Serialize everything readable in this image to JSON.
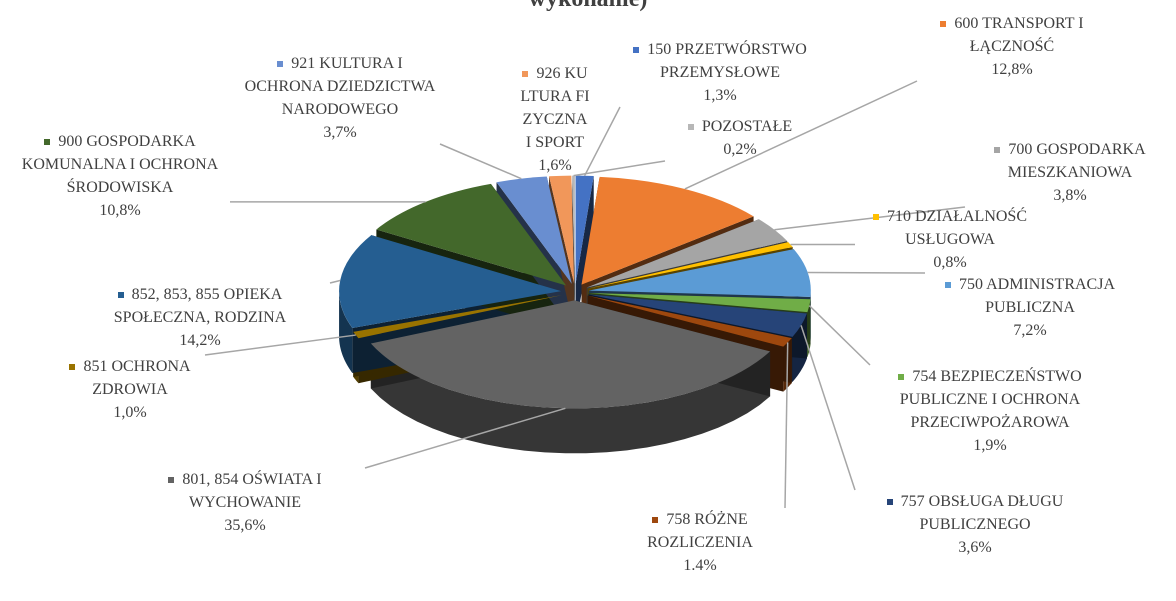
{
  "chart_data": {
    "type": "pie3d",
    "title": "wykonanie)",
    "categories": [
      "150 PRZETWÓRSTWO PRZEMYSŁOWE",
      "600 TRANSPORT I ŁĄCZNOŚĆ",
      "700 GOSPODARKA MIESZKANIOWA",
      "710 DZIAŁALNOŚĆ USŁUGOWA",
      "750 ADMINISTRACJA PUBLICZNA",
      "754 BEZPIECZEŃSTWO PUBLICZNE I OCHRONA PRZECIWPOŻAROWA",
      "757 OBSŁUGA DŁUGU PUBLICZNEGO",
      "758 RÓŻNE ROZLICZENIA",
      "801, 854 OŚWIATA I WYCHOWANIE",
      "851 OCHRONA ZDROWIA",
      "852, 853, 855 OPIEKA SPOŁECZNA, RODZINA",
      "900 GOSPODARKA KOMUNALNA I OCHRONA ŚRODOWISKA",
      "921 KULTURA I OCHRONA DZIEDZICTWA NARODOWEGO",
      "926 KULTURA FIZYCZNA I SPORT",
      "POZOSTAŁE"
    ],
    "values": [
      1.3,
      12.8,
      3.8,
      0.8,
      7.2,
      1.9,
      3.6,
      1.4,
      35.6,
      1.0,
      14.2,
      10.8,
      3.7,
      1.6,
      0.2
    ],
    "value_labels": [
      "1,3%",
      "12,8%",
      "3,8%",
      "0,8%",
      "7,2%",
      "1,9%",
      "3,6%",
      "1.4%",
      "35,6%",
      "1,0%",
      "14,2%",
      "10,8%",
      "3,7%",
      "1,6%",
      "0,2%"
    ],
    "colors": [
      "#4472c4",
      "#ed7d31",
      "#a5a5a5",
      "#ffc000",
      "#5b9bd5",
      "#70ad47",
      "#264478",
      "#9e480e",
      "#636363",
      "#997300",
      "#255e91",
      "#43682b",
      "#698ed0",
      "#f1975a",
      "#b7b7b7"
    ]
  }
}
